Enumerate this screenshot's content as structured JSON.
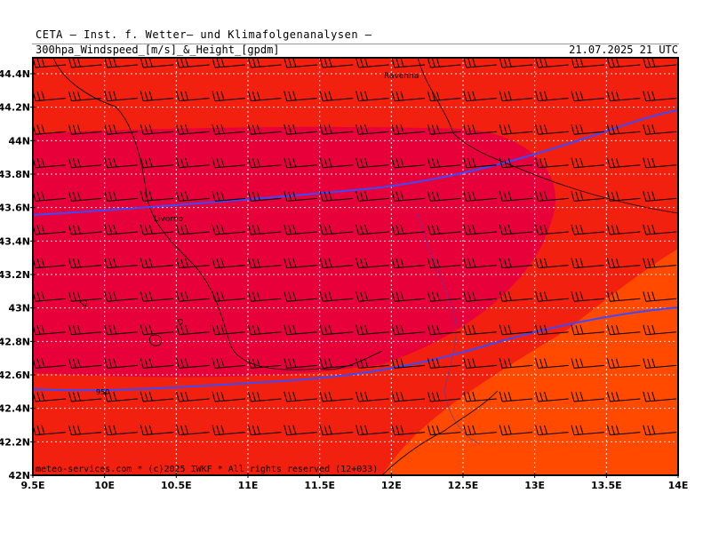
{
  "header": {
    "institute": "CETA — Inst. f. Wetter— und Klimafolgenanalysen —",
    "product": "300hpa_Windspeed_[m/s]_&_Height_[gpdm]",
    "valid_time": "21.07.2025 21 UTC"
  },
  "map": {
    "lat_ticks": [
      "44.4N",
      "44.2N",
      "44N",
      "43.8N",
      "43.6N",
      "43.4N",
      "43.2N",
      "43N",
      "42.8N",
      "42.6N",
      "42.4N",
      "42.2N",
      "42N"
    ],
    "lon_ticks": [
      "9.5E",
      "10E",
      "10.5E",
      "11E",
      "11.5E",
      "12E",
      "12.5E",
      "13E",
      "13.5E",
      "14E"
    ],
    "place_labels": [
      "Ravenna",
      "Livorno"
    ],
    "contour_label": "950",
    "footer": "meteo-services.com * (c)2025 IWKF * All rights reserved (12+033)",
    "colors": {
      "wind_core": "#e8003a",
      "wind_mid": "#f2200e",
      "wind_low": "#ff4a00",
      "wind_lowest": "#ff7a10",
      "height_contour": "#3a4aff",
      "grid": "#e6e6e6"
    }
  }
}
